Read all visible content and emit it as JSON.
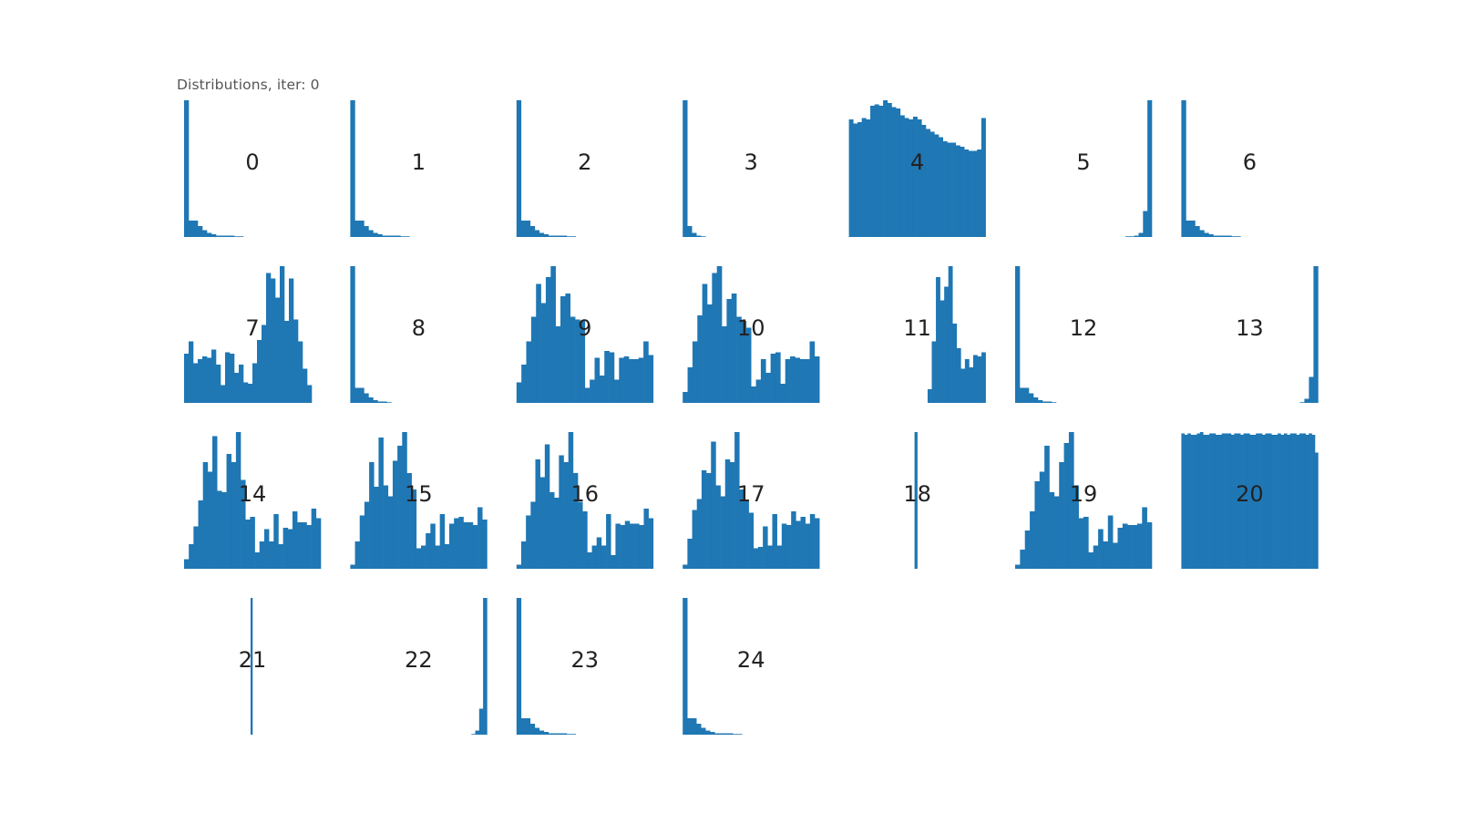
{
  "title": "Distributions, iter: 0",
  "colors": {
    "bar": "#1f77b4",
    "label": "#222222",
    "title": "#555555"
  },
  "grid": {
    "rows": 4,
    "cols": 7
  },
  "chart_data": {
    "type": "bar",
    "title": "Distributions, iter: 0",
    "xlabel": "",
    "ylabel": "",
    "axes_visible": false,
    "panels": [
      {
        "label": "0",
        "values": [
          100,
          12,
          12,
          8,
          5,
          3,
          2,
          1,
          1,
          1,
          1,
          0.5,
          0.5,
          0,
          0,
          0,
          0,
          0,
          0,
          0,
          0,
          0,
          0,
          0,
          0,
          0,
          0,
          0,
          0,
          0
        ]
      },
      {
        "label": "1",
        "values": [
          100,
          12,
          12,
          8,
          5,
          3,
          2,
          1,
          1,
          1,
          1,
          0.5,
          0.5,
          0,
          0,
          0,
          0,
          0,
          0,
          0,
          0,
          0,
          0,
          0,
          0,
          0,
          0,
          0,
          0,
          0
        ]
      },
      {
        "label": "2",
        "values": [
          100,
          12,
          12,
          8,
          5,
          3,
          2,
          1,
          1,
          1,
          1,
          0.5,
          0.5,
          0,
          0,
          0,
          0,
          0,
          0,
          0,
          0,
          0,
          0,
          0,
          0,
          0,
          0,
          0,
          0,
          0
        ]
      },
      {
        "label": "3",
        "values": [
          100,
          8,
          3,
          1,
          0.5,
          0,
          0,
          0,
          0,
          0,
          0,
          0,
          0,
          0,
          0,
          0,
          0,
          0,
          0,
          0,
          0,
          0,
          0,
          0,
          0,
          0,
          0,
          0,
          0,
          0
        ]
      },
      {
        "label": "4",
        "values": [
          86,
          83,
          84,
          87,
          86,
          96,
          97,
          96,
          100,
          98,
          95,
          94,
          89,
          87,
          86,
          88,
          86,
          82,
          79,
          77,
          75,
          73,
          70,
          69,
          69,
          67,
          66,
          64,
          63,
          63,
          64,
          87
        ]
      },
      {
        "label": "5",
        "values": [
          0,
          0,
          0,
          0,
          0,
          0,
          0,
          0,
          0,
          0,
          0,
          0,
          0,
          0,
          0,
          0,
          0,
          0,
          0,
          0,
          0,
          0,
          0,
          0,
          0,
          0.5,
          0.5,
          1,
          3,
          19,
          100
        ]
      },
      {
        "label": "6",
        "values": [
          100,
          12,
          12,
          8,
          5,
          3,
          2,
          1,
          1,
          1,
          1,
          0.5,
          0.5,
          0,
          0,
          0,
          0,
          0,
          0,
          0,
          0,
          0,
          0,
          0,
          0,
          0,
          0,
          0,
          0,
          0
        ]
      },
      {
        "label": "7",
        "values": [
          36,
          45,
          29,
          32,
          34,
          33,
          39,
          28,
          13,
          37,
          36,
          22,
          28,
          15,
          14,
          29,
          46,
          57,
          95,
          91,
          77,
          100,
          60,
          91,
          61,
          45,
          25,
          13,
          0,
          0
        ]
      },
      {
        "label": "8",
        "values": [
          100,
          11,
          11,
          7,
          4,
          2,
          1,
          1,
          0.5,
          0,
          0,
          0,
          0,
          0,
          0,
          0,
          0,
          0,
          0,
          0,
          0,
          0,
          0,
          0,
          0,
          0,
          0,
          0,
          0,
          0
        ]
      },
      {
        "label": "9",
        "values": [
          15,
          28,
          45,
          63,
          87,
          73,
          92,
          100,
          56,
          78,
          80,
          63,
          61,
          60,
          11,
          17,
          33,
          20,
          38,
          37,
          17,
          33,
          34,
          32,
          32,
          33,
          45,
          35
        ]
      },
      {
        "label": "10",
        "values": [
          8,
          26,
          45,
          64,
          87,
          72,
          95,
          100,
          56,
          76,
          80,
          63,
          60,
          55,
          12,
          17,
          32,
          22,
          36,
          37,
          14,
          32,
          34,
          33,
          32,
          32,
          45,
          34
        ]
      },
      {
        "label": "11",
        "values": [
          0,
          0,
          0,
          0,
          0,
          0,
          0,
          0,
          0,
          0,
          0,
          0,
          0,
          0,
          0,
          0,
          0,
          0,
          0,
          10,
          45,
          92,
          75,
          85,
          100,
          58,
          40,
          25,
          32,
          26,
          35,
          34,
          37
        ]
      },
      {
        "label": "12",
        "values": [
          100,
          11,
          11,
          7,
          4,
          2,
          1,
          1,
          0.5,
          0,
          0,
          0,
          0,
          0,
          0,
          0,
          0,
          0,
          0,
          0,
          0,
          0,
          0,
          0,
          0,
          0,
          0,
          0,
          0,
          0
        ]
      },
      {
        "label": "13",
        "values": [
          0,
          0,
          0,
          0,
          0,
          0,
          0,
          0,
          0,
          0,
          0,
          0,
          0,
          0,
          0,
          0,
          0,
          0,
          0,
          0,
          0,
          0,
          0,
          0,
          0,
          0,
          0.5,
          3,
          19,
          100
        ]
      },
      {
        "label": "14",
        "values": [
          7,
          18,
          31,
          50,
          78,
          71,
          97,
          57,
          56,
          84,
          78,
          100,
          65,
          36,
          38,
          12,
          20,
          29,
          20,
          40,
          18,
          30,
          29,
          42,
          34,
          34,
          32,
          44,
          37
        ]
      },
      {
        "label": "15",
        "values": [
          3,
          20,
          39,
          49,
          78,
          60,
          96,
          61,
          53,
          79,
          90,
          100,
          70,
          58,
          15,
          17,
          26,
          33,
          17,
          40,
          18,
          33,
          37,
          38,
          34,
          34,
          32,
          45,
          36
        ]
      },
      {
        "label": "16",
        "values": [
          3,
          20,
          39,
          49,
          80,
          67,
          91,
          56,
          52,
          83,
          78,
          100,
          70,
          49,
          42,
          12,
          17,
          23,
          17,
          40,
          10,
          33,
          32,
          35,
          33,
          33,
          32,
          44,
          37
        ]
      },
      {
        "label": "17",
        "values": [
          3,
          22,
          43,
          51,
          72,
          70,
          93,
          61,
          53,
          80,
          78,
          100,
          58,
          50,
          41,
          15,
          16,
          31,
          17,
          40,
          17,
          33,
          32,
          42,
          35,
          38,
          33,
          40,
          37
        ]
      },
      {
        "label": "18",
        "values": [
          0,
          0,
          0,
          0,
          0,
          0,
          0,
          0,
          0,
          0,
          0,
          0,
          0,
          0,
          0,
          0,
          0,
          0,
          0,
          0,
          0,
          0,
          0,
          0,
          100,
          0,
          0,
          0,
          0,
          0,
          0,
          0,
          0,
          0,
          0,
          0,
          0,
          0,
          0,
          0,
          0,
          0,
          0,
          0,
          0,
          0,
          0,
          0,
          0,
          0
        ]
      },
      {
        "label": "19",
        "values": [
          3,
          14,
          28,
          42,
          64,
          71,
          90,
          56,
          53,
          78,
          92,
          100,
          61,
          37,
          38,
          12,
          17,
          29,
          20,
          39,
          19,
          30,
          33,
          32,
          32,
          33,
          45,
          34
        ]
      },
      {
        "label": "20",
        "values": [
          99,
          98,
          99,
          98,
          98,
          99,
          100,
          98,
          98,
          99,
          99,
          98,
          98,
          99,
          99,
          99,
          98,
          99,
          99,
          98,
          99,
          99,
          98,
          98,
          99,
          99,
          98,
          99,
          99,
          98,
          98,
          99,
          98,
          99,
          98,
          99,
          99,
          98,
          99,
          99,
          98,
          99,
          98,
          85
        ]
      },
      {
        "label": "21",
        "values": [
          0,
          0,
          0,
          0,
          0,
          0,
          0,
          0,
          0,
          0,
          0,
          0,
          0,
          0,
          0,
          0,
          0,
          0,
          0,
          0,
          0,
          0,
          0,
          0,
          0,
          0,
          0,
          0,
          0,
          0,
          0,
          0,
          0,
          0,
          0,
          0,
          100,
          0,
          0,
          0,
          0,
          0,
          0,
          0,
          0,
          0,
          0,
          0,
          0,
          0,
          0,
          0,
          0,
          0,
          0,
          0,
          0,
          0,
          0,
          0,
          0,
          0,
          0,
          0,
          0,
          0,
          0,
          0,
          0,
          0,
          0,
          0,
          0,
          0
        ]
      },
      {
        "label": "22",
        "values": [
          0,
          0,
          0,
          0,
          0,
          0,
          0,
          0,
          0,
          0,
          0,
          0,
          0,
          0,
          0,
          0,
          0,
          0,
          0,
          0,
          0,
          0,
          0,
          0,
          0,
          0,
          0,
          0,
          0,
          0,
          0,
          0.5,
          3,
          19,
          100
        ]
      },
      {
        "label": "23",
        "values": [
          100,
          12,
          12,
          8,
          5,
          3,
          2,
          1,
          1,
          1,
          1,
          0.5,
          0.5,
          0,
          0,
          0,
          0,
          0,
          0,
          0,
          0,
          0,
          0,
          0,
          0,
          0,
          0,
          0,
          0,
          0
        ]
      },
      {
        "label": "24",
        "values": [
          100,
          12,
          12,
          8,
          5,
          3,
          2,
          1,
          1,
          1,
          1,
          0.5,
          0.5,
          0,
          0,
          0,
          0,
          0,
          0,
          0,
          0,
          0,
          0,
          0,
          0,
          0,
          0,
          0,
          0,
          0
        ]
      }
    ]
  }
}
